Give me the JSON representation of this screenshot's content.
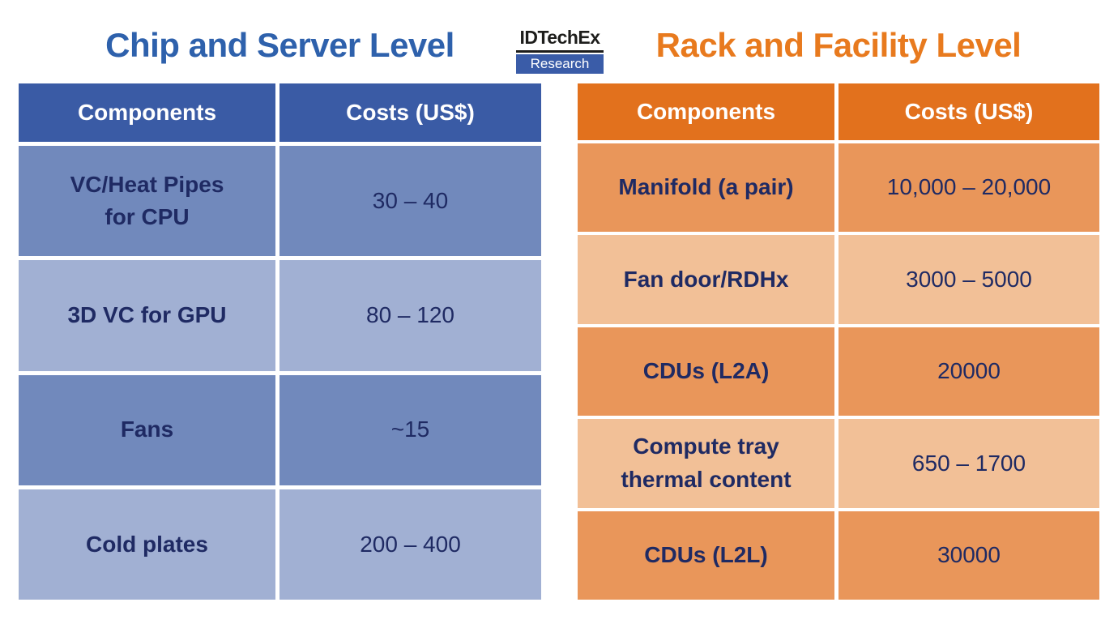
{
  "logo": {
    "brand": "IDTechEx",
    "division": "Research"
  },
  "colors": {
    "background": "#ffffff",
    "blue_title": "#2e61ac",
    "blue_header": "#3a5ba5",
    "blue_row_a": "#7189bc",
    "blue_row_b": "#a1b0d3",
    "orange_title": "#e87a1e",
    "orange_header": "#e2711d",
    "orange_row_a": "#e9965a",
    "orange_row_b": "#f2c097",
    "text_navy": "#1f2a63",
    "header_text": "#ffffff",
    "logo_blue": "#3a5ca8",
    "logo_text": "#1d1d1b"
  },
  "chart_data": [
    {
      "type": "table",
      "title": "Chip and Server Level",
      "columns": [
        "Components",
        "Costs (US$)"
      ],
      "rows": [
        [
          "VC/Heat Pipes\nfor CPU",
          "30 – 40"
        ],
        [
          "3D VC for GPU",
          "80 – 120"
        ],
        [
          "Fans",
          "~15"
        ],
        [
          "Cold plates",
          "200 – 400"
        ]
      ]
    },
    {
      "type": "table",
      "title": "Rack and Facility Level",
      "columns": [
        "Components",
        "Costs (US$)"
      ],
      "rows": [
        [
          "Manifold (a pair)",
          "10,000 – 20,000"
        ],
        [
          "Fan door/RDHx",
          "3000 – 5000"
        ],
        [
          "CDUs (L2A)",
          "20000"
        ],
        [
          "Compute tray\nthermal content",
          "650 – 1700"
        ],
        [
          "CDUs (L2L)",
          "30000"
        ]
      ]
    }
  ]
}
